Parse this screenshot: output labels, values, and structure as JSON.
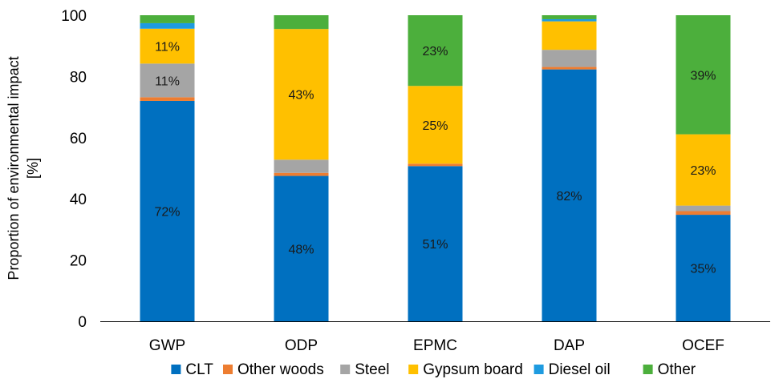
{
  "chart_data": {
    "type": "bar",
    "stacked": true,
    "categories": [
      "GWP",
      "ODP",
      "EPMC",
      "DAP",
      "OCEF"
    ],
    "ylabel_lines": [
      "Proportion of environmental impact",
      "[%]"
    ],
    "ylim": [
      0,
      100
    ],
    "yticks": [
      0,
      20,
      40,
      60,
      80,
      100
    ],
    "grid": false,
    "legend_position": "bottom",
    "series": [
      {
        "name": "CLT",
        "color": "#0070C0",
        "values": [
          72,
          47.5,
          50.7,
          82.3,
          34.8
        ]
      },
      {
        "name": "Other woods",
        "color": "#ED7D31",
        "values": [
          1.2,
          1.0,
          0.8,
          0.8,
          1.2
        ]
      },
      {
        "name": "Steel",
        "color": "#A5A5A5",
        "values": [
          11,
          4.3,
          0,
          5.6,
          1.8
        ]
      },
      {
        "name": "Gypsum board",
        "color": "#FFC000",
        "values": [
          11.4,
          42.7,
          25.4,
          9.3,
          23.3
        ]
      },
      {
        "name": "Diesel oil",
        "color": "#1E9BE0",
        "values": [
          1.8,
          0,
          0,
          0.7,
          0
        ]
      },
      {
        "name": "Other",
        "color": "#4CAF3C",
        "values": [
          2.6,
          4.5,
          23.1,
          1.3,
          38.9
        ]
      }
    ],
    "data_labels": [
      {
        "category": "GWP",
        "series": "CLT",
        "text": "72%"
      },
      {
        "category": "GWP",
        "series": "Steel",
        "text": "11%"
      },
      {
        "category": "GWP",
        "series": "Gypsum board",
        "text": "11%"
      },
      {
        "category": "ODP",
        "series": "CLT",
        "text": "48%"
      },
      {
        "category": "ODP",
        "series": "Gypsum board",
        "text": "43%"
      },
      {
        "category": "EPMC",
        "series": "CLT",
        "text": "51%"
      },
      {
        "category": "EPMC",
        "series": "Gypsum board",
        "text": "25%"
      },
      {
        "category": "EPMC",
        "series": "Other",
        "text": "23%"
      },
      {
        "category": "DAP",
        "series": "CLT",
        "text": "82%"
      },
      {
        "category": "OCEF",
        "series": "CLT",
        "text": "35%"
      },
      {
        "category": "OCEF",
        "series": "Gypsum board",
        "text": "23%"
      },
      {
        "category": "OCEF",
        "series": "Other",
        "text": "39%"
      }
    ]
  }
}
